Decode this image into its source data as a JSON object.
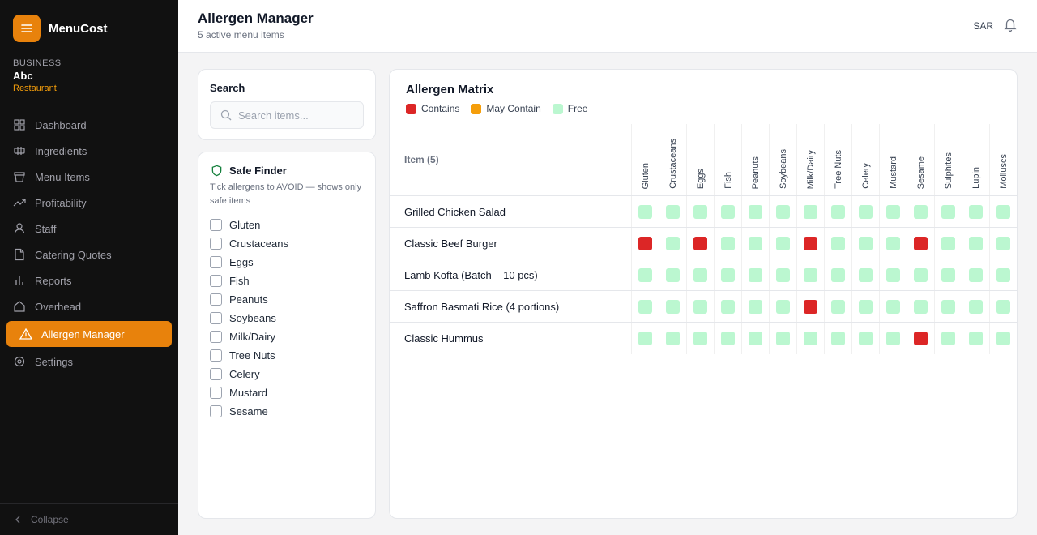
{
  "app": {
    "name": "MenuCost"
  },
  "business": {
    "label": "BUSINESS",
    "name": "Abc",
    "type": "Restaurant"
  },
  "nav": [
    {
      "label": "Dashboard",
      "icon": "dashboard-icon"
    },
    {
      "label": "Ingredients",
      "icon": "ingredients-icon"
    },
    {
      "label": "Menu Items",
      "icon": "menu-items-icon"
    },
    {
      "label": "Profitability",
      "icon": "trending-up-icon"
    },
    {
      "label": "Staff",
      "icon": "user-icon"
    },
    {
      "label": "Catering Quotes",
      "icon": "document-icon"
    },
    {
      "label": "Reports",
      "icon": "bar-chart-icon"
    },
    {
      "label": "Overhead",
      "icon": "home-icon"
    },
    {
      "label": "Allergen Manager",
      "icon": "warning-icon",
      "active": true
    },
    {
      "label": "Settings",
      "icon": "settings-icon"
    }
  ],
  "collapse_label": "Collapse",
  "header": {
    "title": "Allergen Manager",
    "subtitle": "5 active menu items",
    "currency": "SAR"
  },
  "search": {
    "title": "Search",
    "placeholder": "Search items..."
  },
  "safe_finder": {
    "title": "Safe Finder",
    "description": "Tick allergens to AVOID — shows only safe items",
    "allergens": [
      "Gluten",
      "Crustaceans",
      "Eggs",
      "Fish",
      "Peanuts",
      "Soybeans",
      "Milk/Dairy",
      "Tree Nuts",
      "Celery",
      "Mustard",
      "Sesame"
    ]
  },
  "matrix": {
    "title": "Allergen Matrix",
    "legend": [
      {
        "label": "Contains",
        "color": "#dc2626"
      },
      {
        "label": "May Contain",
        "color": "#f59e0b"
      },
      {
        "label": "Free",
        "color": "#bbf7d0"
      }
    ],
    "item_header": "Item (5)",
    "columns": [
      "Gluten",
      "Crustaceans",
      "Eggs",
      "Fish",
      "Peanuts",
      "Soybeans",
      "Milk/Dairy",
      "Tree Nuts",
      "Celery",
      "Mustard",
      "Sesame",
      "Sulphites",
      "Lupin",
      "Molluscs"
    ],
    "rows": [
      {
        "name": "Grilled Chicken Salad",
        "contains": []
      },
      {
        "name": "Classic Beef Burger",
        "contains": [
          "Gluten",
          "Eggs",
          "Milk/Dairy",
          "Sesame"
        ]
      },
      {
        "name": "Lamb Kofta (Batch – 10 pcs)",
        "contains": []
      },
      {
        "name": "Saffron Basmati Rice (4 portions)",
        "contains": [
          "Milk/Dairy"
        ]
      },
      {
        "name": "Classic Hummus",
        "contains": [
          "Sesame"
        ]
      }
    ]
  },
  "colors": {
    "accent": "#e8820c",
    "contains": "#dc2626",
    "may_contain": "#f59e0b",
    "free": "#bbf7d0"
  }
}
